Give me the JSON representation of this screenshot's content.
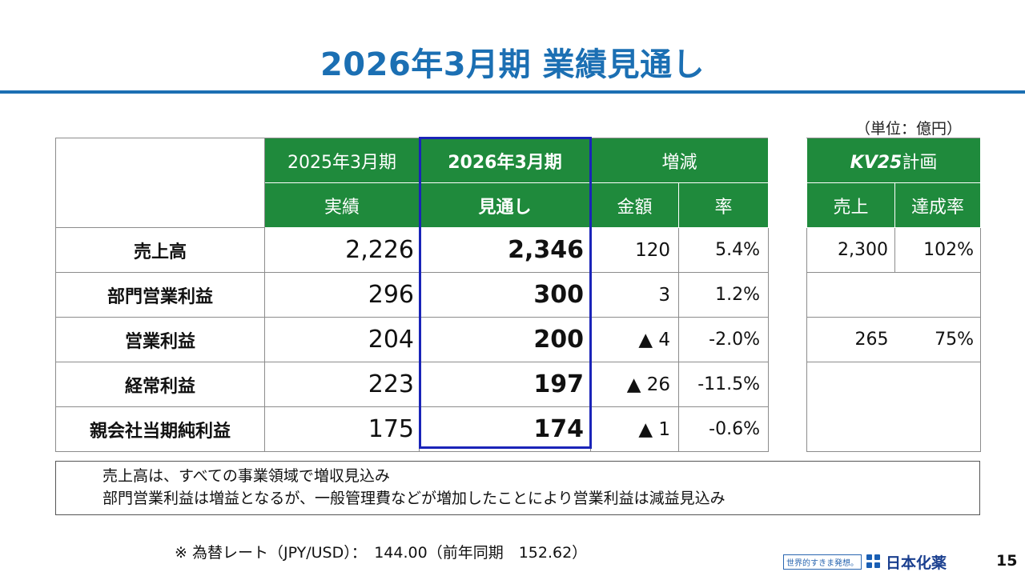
{
  "title": "2026年3月期 業績見通し",
  "unit": "（単位：億円）",
  "header": {
    "col_prev_year": "2025年3月期",
    "col_prev_sub": "実績",
    "col_cur_year": "2026年3月期",
    "col_cur_sub": "見通し",
    "col_change": "増減",
    "col_amount": "金額",
    "col_rate": "率",
    "plan_brand": "KV25",
    "plan_label": "計画",
    "plan_sales": "売上",
    "plan_achieve": "達成率"
  },
  "rows": [
    {
      "label": "売上高",
      "prev": "2,226",
      "cur": "2,346",
      "amount": "120",
      "rate": "5.4%",
      "plan": "2,300",
      "achieve": "102%"
    },
    {
      "label": "部門営業利益",
      "prev": "296",
      "cur": "300",
      "amount": "3",
      "rate": "1.2%",
      "plan": "",
      "achieve": ""
    },
    {
      "label": "営業利益",
      "prev": "204",
      "cur": "200",
      "amount": "▲ 4",
      "rate": "-2.0%",
      "plan": "265",
      "achieve": "75%"
    },
    {
      "label": "経常利益",
      "prev": "223",
      "cur": "197",
      "amount": "▲ 26",
      "rate": "-11.5%",
      "plan": "",
      "achieve": ""
    },
    {
      "label": "親会社当期純利益",
      "prev": "175",
      "cur": "174",
      "amount": "▲ 1",
      "rate": "-0.6%",
      "plan": "",
      "achieve": ""
    }
  ],
  "notes": [
    "売上高は、すべての事業領域で増収見込み",
    "部門営業利益は増益となるが、一般管理費などが増加したことにより営業利益は減益見込み"
  ],
  "fx_note": "※ 為替レート（JPY/USD）：　144.00（前年同期　152.62）",
  "footer": {
    "slogan": "世界的すきま発想。",
    "company": "日本化薬",
    "page": "15"
  },
  "colors": {
    "title": "#1b6fb3",
    "header_green": "#1f8a3c",
    "highlight_border": "#1a24b8"
  }
}
